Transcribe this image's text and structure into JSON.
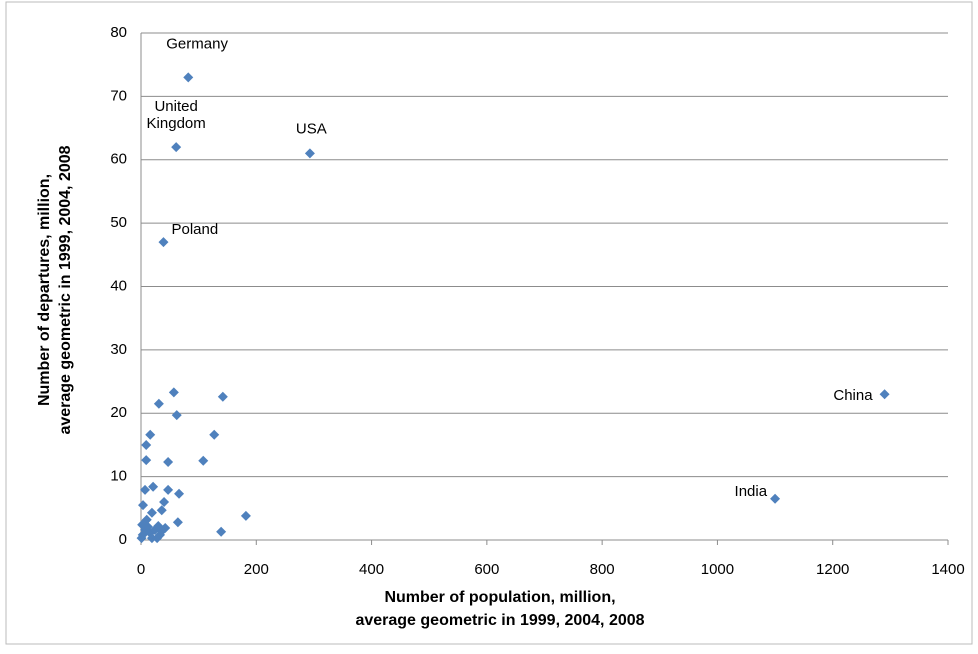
{
  "chart_data": {
    "type": "scatter",
    "x_label": [
      "Number of population, million,",
      "average geometric in 1999, 2004, 2008"
    ],
    "y_label": [
      "Number of departures, million,",
      "average geometric in 1999, 2004, 2008"
    ],
    "xlim": [
      0,
      1400
    ],
    "xticks": [
      0,
      200,
      400,
      600,
      800,
      1000,
      1200,
      1400
    ],
    "ylim": [
      0,
      80
    ],
    "yticks": [
      0,
      10,
      20,
      30,
      40,
      50,
      60,
      70,
      80
    ],
    "grid": true,
    "color": "#4f81bd",
    "x": [
      82,
      61,
      293,
      39,
      1290,
      1100,
      31,
      57,
      62,
      142,
      16,
      9,
      9,
      47,
      108,
      127,
      21,
      7,
      47,
      66,
      40,
      3.5,
      36,
      19,
      182,
      64,
      139,
      1,
      3,
      7,
      12,
      16,
      24,
      30,
      33,
      42,
      19,
      10,
      28,
      36,
      2
    ],
    "y": [
      73,
      62,
      61,
      47,
      23,
      6.5,
      21.5,
      23.3,
      19.7,
      22.6,
      16.6,
      15,
      12.6,
      12.3,
      12.5,
      16.6,
      8.4,
      7.9,
      7.9,
      7.3,
      6,
      5.5,
      4.7,
      4.3,
      3.8,
      2.8,
      1.3,
      0.3,
      0.8,
      1.6,
      2.1,
      1.1,
      1.6,
      2.2,
      0.8,
      1.9,
      0.3,
      3.2,
      0.3,
      1.4,
      2.4
    ],
    "labels": [
      "Germany",
      "United Kingdom",
      "USA",
      "Poland",
      "China",
      "India",
      null,
      null,
      null,
      null,
      null,
      null,
      null,
      null,
      null,
      null,
      null,
      null,
      null,
      null,
      null,
      null,
      null,
      null,
      null,
      null,
      null,
      null,
      null,
      null,
      null,
      null,
      null,
      null,
      null,
      null,
      null,
      null,
      null,
      null,
      null
    ]
  }
}
